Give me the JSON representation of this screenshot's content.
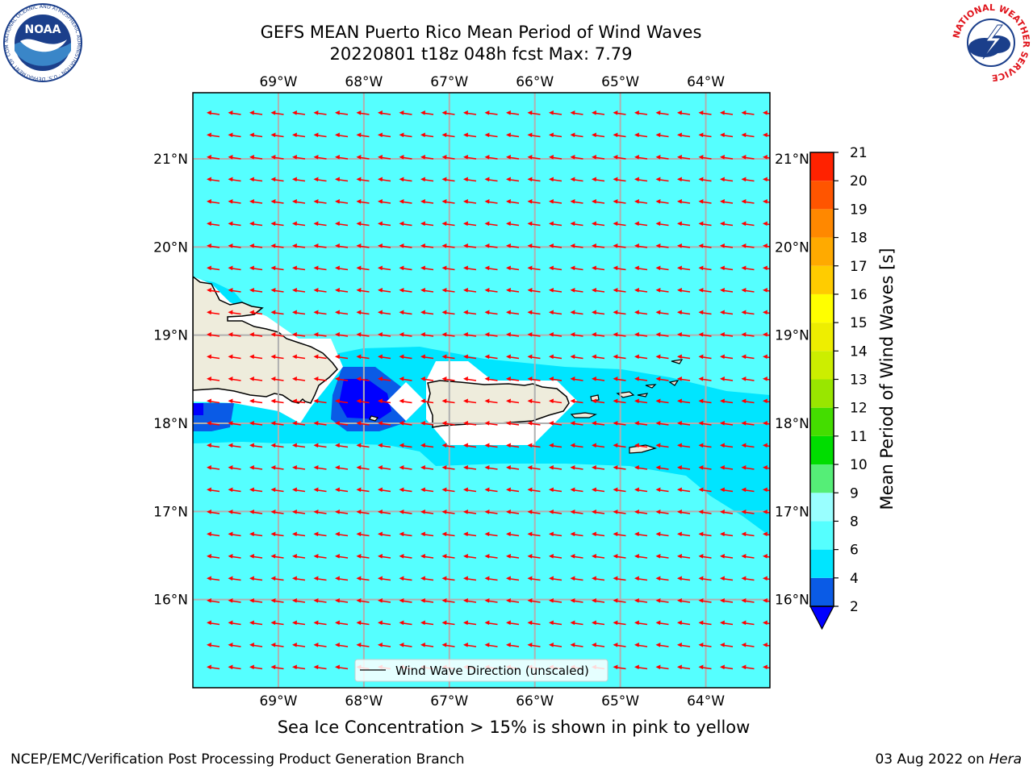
{
  "header": {
    "title_line1": "GEFS MEAN Puerto Rico Mean Period of Wind Waves",
    "title_line2": "20220801 t18z 048h fcst   Max: 7.79"
  },
  "logos": {
    "left": "NOAA",
    "left_ring": "NATIONAL OCEANIC AND ATMOSPHERIC ADMINISTRATION · U.S. DEPARTMENT OF COMMERCE ·",
    "right_ring": "NATIONAL WEATHER SERVICE"
  },
  "map": {
    "lon_range": [
      -70.0,
      -63.25
    ],
    "lat_range": [
      15.0,
      21.75
    ],
    "lon_ticks": [
      "69°W",
      "68°W",
      "67°W",
      "66°W",
      "65°W",
      "64°W"
    ],
    "lon_tick_values": [
      -69,
      -68,
      -67,
      -66,
      -65,
      -64
    ],
    "lat_ticks": [
      "16°N",
      "17°N",
      "18°N",
      "19°N",
      "20°N",
      "21°N"
    ],
    "lat_tick_values": [
      16,
      17,
      18,
      19,
      20,
      21
    ],
    "background_level_color": "#55ffff",
    "arrow_color": "#ff0000",
    "arrow_direction": "toward west (from east)",
    "legend_label": "Wind Wave Direction (unscaled)",
    "land_color": "#eeecdc"
  },
  "colorbar": {
    "label": "Mean Period of Wind Waves [s]",
    "ticks": [
      "2",
      "4",
      "6",
      "8",
      "9",
      "10",
      "11",
      "12",
      "13",
      "14",
      "15",
      "16",
      "17",
      "18",
      "19",
      "20",
      "21"
    ],
    "colors": [
      "#0a5be6",
      "#00e5ff",
      "#55ffff",
      "#99ffff",
      "#55ee77",
      "#00dd00",
      "#44dd00",
      "#99e600",
      "#ccee00",
      "#eeee00",
      "#ffff00",
      "#ffcc00",
      "#ffaa00",
      "#ff8800",
      "#ff5500",
      "#ff2200"
    ],
    "under_color": "#0000ff"
  },
  "note": "Sea Ice Concentration > 15% is shown in pink to yellow",
  "footer": {
    "left": "NCEP/EMC/Verification Post Processing Product Generation Branch",
    "date": "03 Aug 2022 on ",
    "machine": "Hera"
  }
}
